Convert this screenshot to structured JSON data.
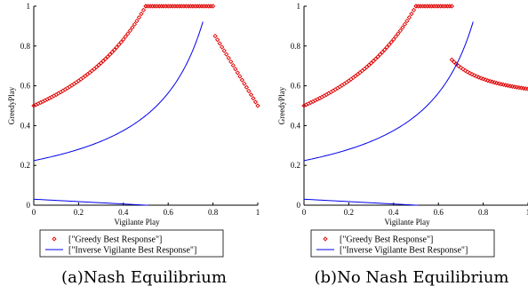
{
  "chart_data": [
    {
      "type": "scatter",
      "caption": "(a)Nash Equilibrium",
      "xlabel": "Vigilante Play",
      "ylabel": "GreedyPlay",
      "xlim": [
        0,
        1
      ],
      "ylim": [
        0,
        1
      ],
      "x_ticks": [
        "0",
        "0.2",
        "0.4",
        "0.6",
        "0.8",
        "1"
      ],
      "y_ticks": [
        "0",
        "0.2",
        "0.4",
        "0.6",
        "0.8",
        "1"
      ],
      "grid": false,
      "legend_position": "bottom",
      "series": [
        {
          "name": "[\"Greedy Best Response\"]",
          "style": "markers",
          "color": "#e00000",
          "segments": [
            {
              "func": "greedy_rise",
              "x_start": 0.0,
              "x_end": 0.5
            },
            {
              "func": "flat_one",
              "x_start": 0.5,
              "x_end": 0.8
            },
            {
              "func": "linear",
              "x_start": 0.81,
              "y_start": 0.85,
              "x_end": 1.0,
              "y_end": 0.5
            }
          ]
        },
        {
          "name": "[\"Inverse Vigilante Best Response\"]",
          "style": "line",
          "color": "#0000ee",
          "segments": [
            {
              "func": "vig_curve",
              "x_start": 0.0,
              "x_end": 0.755
            },
            {
              "func": "vig_low",
              "x_start": 0.0,
              "x_end": 0.51
            }
          ]
        }
      ]
    },
    {
      "type": "scatter",
      "caption": "(b)No Nash Equilibrium",
      "xlabel": "Vigilante Play",
      "ylabel": "GreedyPlay",
      "xlim": [
        0,
        1
      ],
      "ylim": [
        0,
        1
      ],
      "x_ticks": [
        "0",
        "0.2",
        "0.4",
        "0.6",
        "0.8",
        "1"
      ],
      "y_ticks": [
        "0",
        "0.2",
        "0.4",
        "0.6",
        "0.8",
        "1"
      ],
      "grid": false,
      "legend_position": "bottom",
      "series": [
        {
          "name": "[\"Greedy Best Response\"]",
          "style": "markers",
          "color": "#e00000",
          "segments": [
            {
              "func": "greedy_rise",
              "x_start": 0.0,
              "x_end": 0.5
            },
            {
              "func": "flat_one",
              "x_start": 0.5,
              "x_end": 0.66
            },
            {
              "func": "decay_b",
              "x_start": 0.66,
              "x_end": 1.0
            }
          ]
        },
        {
          "name": "[\"Inverse Vigilante Best Response\"]",
          "style": "line",
          "color": "#0000ee",
          "segments": [
            {
              "func": "vig_curve",
              "x_start": 0.0,
              "x_end": 0.755
            },
            {
              "func": "vig_low",
              "x_start": 0.0,
              "x_end": 0.51
            }
          ]
        }
      ]
    }
  ]
}
